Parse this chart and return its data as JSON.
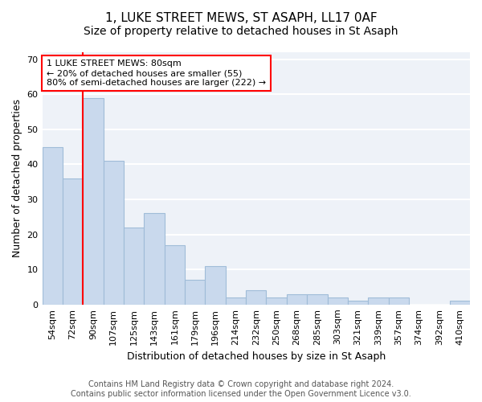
{
  "title": "1, LUKE STREET MEWS, ST ASAPH, LL17 0AF",
  "subtitle": "Size of property relative to detached houses in St Asaph",
  "xlabel": "Distribution of detached houses by size in St Asaph",
  "ylabel": "Number of detached properties",
  "categories": [
    "54sqm",
    "72sqm",
    "90sqm",
    "107sqm",
    "125sqm",
    "143sqm",
    "161sqm",
    "179sqm",
    "196sqm",
    "214sqm",
    "232sqm",
    "250sqm",
    "268sqm",
    "285sqm",
    "303sqm",
    "321sqm",
    "339sqm",
    "357sqm",
    "374sqm",
    "392sqm",
    "410sqm"
  ],
  "values": [
    45,
    36,
    59,
    41,
    22,
    26,
    17,
    7,
    11,
    2,
    4,
    2,
    3,
    3,
    2,
    1,
    2,
    2,
    0,
    0,
    1
  ],
  "bar_color": "#c9d9ed",
  "bar_edge_color": "#a0bcd8",
  "property_line_x": 1.5,
  "annotation_text": "1 LUKE STREET MEWS: 80sqm\n← 20% of detached houses are smaller (55)\n80% of semi-detached houses are larger (222) →",
  "annotation_box_color": "white",
  "annotation_box_edge_color": "red",
  "line_color": "red",
  "ylim": [
    0,
    72
  ],
  "yticks": [
    0,
    10,
    20,
    30,
    40,
    50,
    60,
    70
  ],
  "title_fontsize": 11,
  "subtitle_fontsize": 10,
  "xlabel_fontsize": 9,
  "ylabel_fontsize": 9,
  "tick_fontsize": 8,
  "annotation_fontsize": 8,
  "footer1": "Contains HM Land Registry data © Crown copyright and database right 2024.",
  "footer2": "Contains public sector information licensed under the Open Government Licence v3.0.",
  "footer_fontsize": 7,
  "background_color": "#eef2f8",
  "grid_color": "white"
}
